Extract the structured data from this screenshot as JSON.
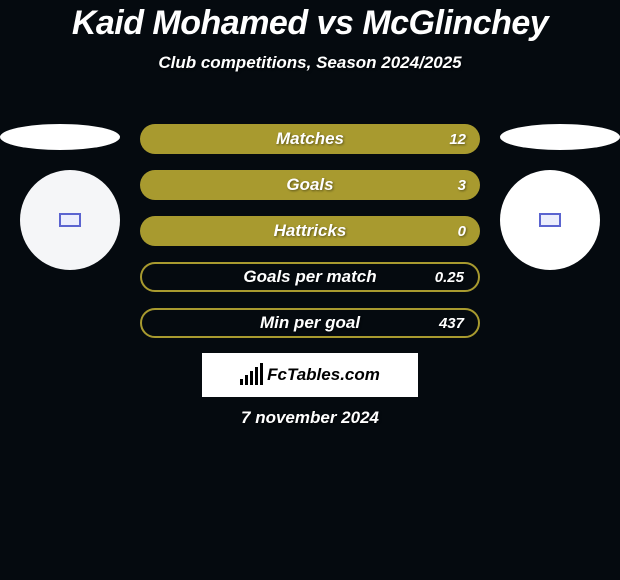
{
  "title": "Kaid Mohamed vs McGlinchey",
  "title_fontsize": 34,
  "subtitle": "Club competitions, Season 2024/2025",
  "subtitle_fontsize": 17,
  "date": "7 november 2024",
  "date_fontsize": 17,
  "colors": {
    "background": "#050a0f",
    "accent": "#a89a2f",
    "text": "#ffffff"
  },
  "stats": [
    {
      "label": "Matches",
      "value": "12",
      "style": "fill"
    },
    {
      "label": "Goals",
      "value": "3",
      "style": "fill"
    },
    {
      "label": "Hattricks",
      "value": "0",
      "style": "fill"
    },
    {
      "label": "Goals per match",
      "value": "0.25",
      "style": "outline"
    },
    {
      "label": "Min per goal",
      "value": "437",
      "style": "outline"
    }
  ],
  "stat_label_fontsize": 17,
  "stat_value_fontsize": 15,
  "brand": "FcTables.com",
  "brand_fontsize": 17,
  "brand_bars_heights": [
    6,
    10,
    14,
    18,
    22
  ]
}
